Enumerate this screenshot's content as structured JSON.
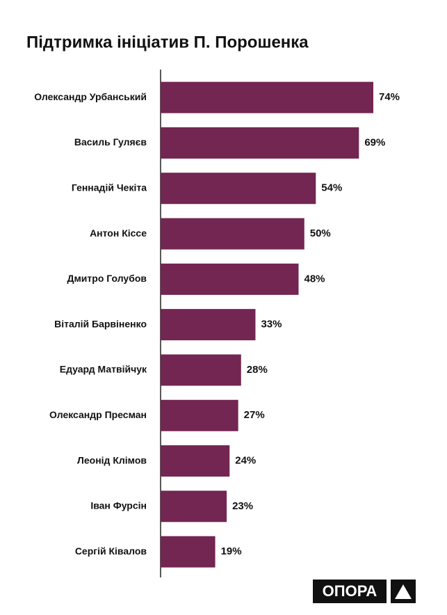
{
  "chart_data": {
    "type": "barh",
    "title": "Підтримка ініціатив П. Порошенка",
    "categories": [
      "Олександр Урбанський",
      "Василь Гуляєв",
      "Геннадій Чекіта",
      "Антон Кіссе",
      "Дмитро Голубов",
      "Віталій Барвіненко",
      "Едуард Матвійчук",
      "Олександр Пресман",
      "Леонід Клімов",
      "Іван Фурсін",
      "Сергій Ківалов"
    ],
    "values": [
      74,
      69,
      54,
      50,
      48,
      33,
      28,
      27,
      24,
      23,
      19
    ],
    "value_labels": [
      "74%",
      "69%",
      "54%",
      "50%",
      "48%",
      "33%",
      "28%",
      "27%",
      "24%",
      "23%",
      "19%"
    ],
    "color": "#722651"
  },
  "logo": {
    "text": "ОПОРА"
  }
}
